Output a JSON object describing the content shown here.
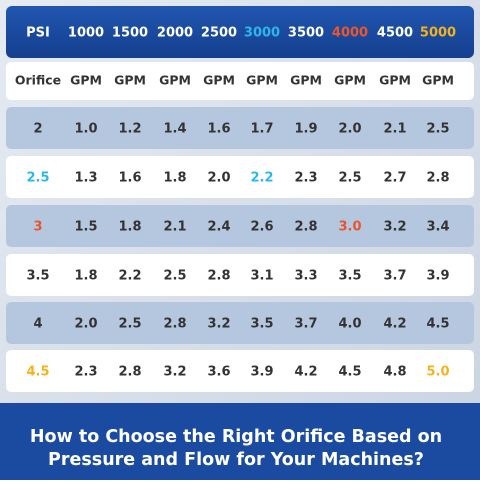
{
  "header": {
    "cells": [
      "PSI",
      "1000",
      "1500",
      "2000",
      "2500",
      {
        "text": "3000",
        "color": "#2bb6ee"
      },
      "3500",
      {
        "text": "4000",
        "color": "#f0552a"
      },
      "4500",
      {
        "text": "5000",
        "color": "#f5b21c"
      }
    ]
  },
  "units_row": {
    "cells": [
      "Orifice",
      "GPM",
      "GPM",
      "GPM",
      "GPM",
      "GPM",
      "GPM",
      "GPM",
      "GPM",
      "GPM"
    ]
  },
  "table": {
    "rows": [
      [
        "2",
        "1.0",
        "1.2",
        "1.4",
        "1.6",
        "1.7",
        "1.9",
        "2.0",
        "2.1",
        "2.5"
      ],
      [
        {
          "text": "2.5",
          "color": "#2bb6ee"
        },
        "1.3",
        "1.6",
        "1.8",
        "2.0",
        {
          "text": "2.2",
          "color": "#2bb6ee"
        },
        "2.3",
        "2.5",
        "2.7",
        "2.8"
      ],
      [
        {
          "text": "3",
          "color": "#e8542a"
        },
        "1.5",
        "1.8",
        "2.1",
        "2.4",
        "2.6",
        "2.8",
        {
          "text": "3.0",
          "color": "#e8542a"
        },
        "3.2",
        "3.4"
      ],
      [
        "3.5",
        "1.8",
        "2.2",
        "2.5",
        "2.8",
        "3.1",
        "3.3",
        "3.5",
        "3.7",
        "3.9"
      ],
      [
        "4",
        "2.0",
        "2.5",
        "2.8",
        "3.2",
        "3.5",
        "3.7",
        "4.0",
        "4.2",
        "4.5"
      ],
      [
        {
          "text": "4.5",
          "color": "#f5b21c"
        },
        "2.3",
        "2.8",
        "3.2",
        "3.6",
        "3.9",
        "4.2",
        "4.5",
        "4.8",
        {
          "text": "5.0",
          "color": "#f5b21c"
        }
      ]
    ]
  },
  "footer": {
    "title_lines": [
      "How to Choose the Right Orifice Based on",
      "Pressure and Flow for Your Machines?"
    ]
  }
}
